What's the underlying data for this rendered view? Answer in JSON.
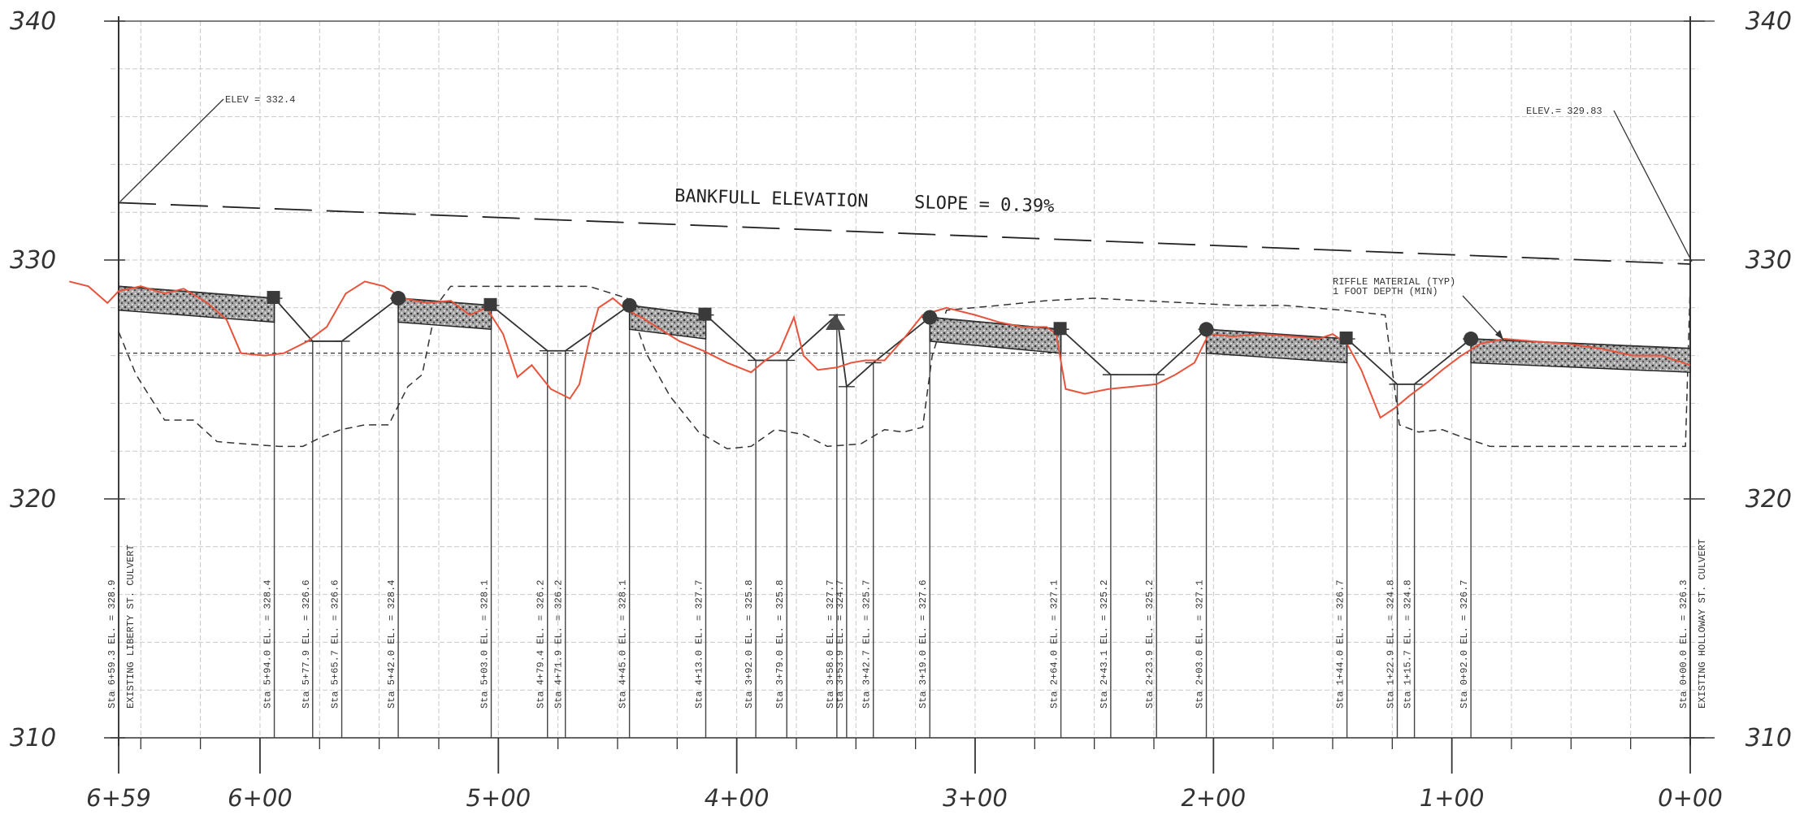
{
  "elevation_ticks": [
    {
      "label": "340",
      "value": 340
    },
    {
      "label": "330",
      "value": 330
    },
    {
      "label": "320",
      "value": 320
    },
    {
      "label": "310",
      "value": 310
    }
  ],
  "station_ticks": [
    {
      "label": "6+59",
      "sta": 659.3
    },
    {
      "label": "6+00",
      "sta": 600
    },
    {
      "label": "5+00",
      "sta": 500
    },
    {
      "label": "4+00",
      "sta": 400
    },
    {
      "label": "3+00",
      "sta": 300
    },
    {
      "label": "2+00",
      "sta": 200
    },
    {
      "label": "1+00",
      "sta": 100
    },
    {
      "label": "0+00",
      "sta": 0
    }
  ],
  "notes": {
    "elev_left": "ELEV = 332.4",
    "elev_right": "ELEV.= 329.83",
    "bankfull": "BANKFULL ELEVATION",
    "slope": "SLOPE = 0.39%",
    "riffle_line1": "RIFFLE MATERIAL (TYP)",
    "riffle_line2": "1 FOOT DEPTH (MIN)"
  },
  "bankfull_line": {
    "start": {
      "sta": 659.3,
      "elev": 332.4
    },
    "end": {
      "sta": 0,
      "elev": 329.83
    }
  },
  "proposed_profile": [
    [
      659.3,
      328.9
    ],
    [
      594,
      328.4
    ],
    [
      577.9,
      326.6
    ],
    [
      565.7,
      326.6
    ],
    [
      542,
      328.4
    ],
    [
      503,
      328.1
    ],
    [
      479.4,
      326.2
    ],
    [
      471.9,
      326.2
    ],
    [
      445,
      328.1
    ],
    [
      413,
      327.7
    ],
    [
      392,
      325.8
    ],
    [
      379,
      325.8
    ],
    [
      358,
      327.7
    ],
    [
      353.9,
      324.7
    ],
    [
      342.7,
      325.7
    ],
    [
      319,
      327.6
    ],
    [
      264,
      327.1
    ],
    [
      243.1,
      325.2
    ],
    [
      223.9,
      325.2
    ],
    [
      203,
      327.1
    ],
    [
      144,
      326.7
    ],
    [
      122.9,
      324.8
    ],
    [
      115.7,
      324.8
    ],
    [
      92,
      326.7
    ],
    [
      0,
      326.3
    ]
  ],
  "riffles": [
    {
      "from": 659.3,
      "to": 594
    },
    {
      "from": 542,
      "to": 503
    },
    {
      "from": 445,
      "to": 413
    },
    {
      "from": 319,
      "to": 264
    },
    {
      "from": 203,
      "to": 144
    },
    {
      "from": 92,
      "to": 0
    }
  ],
  "riffle_markers": [
    {
      "sta": 542,
      "type": "circle"
    },
    {
      "sta": 503,
      "type": "square"
    },
    {
      "sta": 445,
      "type": "circle"
    },
    {
      "sta": 413,
      "type": "square"
    },
    {
      "sta": 319,
      "type": "circle"
    },
    {
      "sta": 264,
      "type": "square"
    },
    {
      "sta": 203,
      "type": "circle"
    },
    {
      "sta": 144,
      "type": "square"
    },
    {
      "sta": 92,
      "type": "circle"
    },
    {
      "sta": 594,
      "type": "square"
    }
  ],
  "existing_ground": [
    [
      680,
      329.1
    ],
    [
      672,
      328.9
    ],
    [
      664,
      328.2
    ],
    [
      659.3,
      328.7
    ],
    [
      650,
      328.9
    ],
    [
      640,
      328.6
    ],
    [
      632,
      328.8
    ],
    [
      622,
      328.2
    ],
    [
      614,
      327.5
    ],
    [
      608,
      326.1
    ],
    [
      598,
      326.0
    ],
    [
      590,
      326.1
    ],
    [
      580,
      326.6
    ],
    [
      572,
      327.2
    ],
    [
      564,
      328.6
    ],
    [
      556,
      329.1
    ],
    [
      548,
      328.9
    ],
    [
      540,
      328.4
    ],
    [
      530,
      328.2
    ],
    [
      520,
      328.3
    ],
    [
      512,
      327.7
    ],
    [
      505,
      328.0
    ],
    [
      498,
      326.9
    ],
    [
      492,
      325.1
    ],
    [
      486,
      325.6
    ],
    [
      478,
      324.6
    ],
    [
      470,
      324.2
    ],
    [
      466,
      324.8
    ],
    [
      462,
      326.6
    ],
    [
      458,
      328.0
    ],
    [
      452,
      328.4
    ],
    [
      446,
      327.9
    ],
    [
      440,
      327.6
    ],
    [
      432,
      327.1
    ],
    [
      424,
      326.6
    ],
    [
      414,
      326.2
    ],
    [
      404,
      325.7
    ],
    [
      394,
      325.3
    ],
    [
      388,
      325.8
    ],
    [
      382,
      326.2
    ],
    [
      376,
      327.6
    ],
    [
      372,
      326.0
    ],
    [
      366,
      325.4
    ],
    [
      358,
      325.5
    ],
    [
      352,
      325.7
    ],
    [
      346,
      325.8
    ],
    [
      338,
      325.8
    ],
    [
      330,
      326.7
    ],
    [
      322,
      327.7
    ],
    [
      312,
      328.0
    ],
    [
      300,
      327.7
    ],
    [
      290,
      327.4
    ],
    [
      280,
      327.2
    ],
    [
      270,
      327.2
    ],
    [
      266,
      326.9
    ],
    [
      262,
      324.6
    ],
    [
      254,
      324.4
    ],
    [
      244,
      324.6
    ],
    [
      234,
      324.7
    ],
    [
      224,
      324.8
    ],
    [
      216,
      325.2
    ],
    [
      208,
      325.7
    ],
    [
      202,
      326.9
    ],
    [
      192,
      326.8
    ],
    [
      180,
      326.9
    ],
    [
      166,
      326.8
    ],
    [
      156,
      326.7
    ],
    [
      150,
      326.9
    ],
    [
      144,
      326.5
    ],
    [
      138,
      325.4
    ],
    [
      130,
      323.4
    ],
    [
      124,
      323.8
    ],
    [
      118,
      324.3
    ],
    [
      110,
      324.9
    ],
    [
      104,
      325.4
    ],
    [
      96,
      326.0
    ],
    [
      88,
      326.5
    ],
    [
      78,
      326.7
    ],
    [
      66,
      326.6
    ],
    [
      52,
      326.5
    ],
    [
      38,
      326.3
    ],
    [
      24,
      326.0
    ],
    [
      12,
      326.0
    ],
    [
      0,
      325.6
    ]
  ],
  "existing_thalweg": [
    [
      659.3,
      327.0
    ],
    [
      652,
      325.2
    ],
    [
      640,
      323.3
    ],
    [
      628,
      323.3
    ],
    [
      618,
      322.4
    ],
    [
      606,
      322.3
    ],
    [
      592,
      322.2
    ],
    [
      582,
      322.2
    ],
    [
      574,
      322.6
    ],
    [
      566,
      322.9
    ],
    [
      556,
      323.1
    ],
    [
      546,
      323.1
    ],
    [
      538,
      324.7
    ],
    [
      532,
      325.2
    ],
    [
      526,
      328.1
    ],
    [
      520,
      328.9
    ],
    [
      500,
      328.9
    ],
    [
      482,
      328.9
    ],
    [
      462,
      328.9
    ],
    [
      446,
      328.4
    ],
    [
      438,
      326.1
    ],
    [
      428,
      324.3
    ],
    [
      416,
      322.8
    ],
    [
      404,
      322.1
    ],
    [
      394,
      322.2
    ],
    [
      384,
      322.9
    ],
    [
      372,
      322.7
    ],
    [
      362,
      322.2
    ],
    [
      348,
      322.3
    ],
    [
      338,
      322.9
    ],
    [
      330,
      322.8
    ],
    [
      322,
      323.0
    ],
    [
      318,
      326.0
    ],
    [
      312,
      327.9
    ],
    [
      290,
      328.1
    ],
    [
      270,
      328.3
    ],
    [
      250,
      328.4
    ],
    [
      230,
      328.3
    ],
    [
      210,
      328.2
    ],
    [
      190,
      328.1
    ],
    [
      170,
      328.1
    ],
    [
      146,
      327.9
    ],
    [
      128,
      327.7
    ],
    [
      122,
      323.1
    ],
    [
      114,
      322.8
    ],
    [
      104,
      322.9
    ],
    [
      96,
      322.6
    ],
    [
      84,
      322.2
    ],
    [
      60,
      322.2
    ],
    [
      30,
      322.2
    ],
    [
      2,
      322.2
    ],
    [
      0,
      329.0
    ]
  ],
  "water_surface_elev": 326.1,
  "structure_labels": [
    {
      "sta": 659.3,
      "text": "Sta 6+59.3 EL. = 328.9"
    },
    {
      "sta": 594,
      "text": "Sta 5+94.0 EL. = 328.4"
    },
    {
      "sta": 577.9,
      "text": "Sta 5+77.9 EL. = 326.6"
    },
    {
      "sta": 565.7,
      "text": "Sta 5+65.7 EL. = 326.6"
    },
    {
      "sta": 542,
      "text": "Sta 5+42.0 EL. = 328.4"
    },
    {
      "sta": 503,
      "text": "Sta 5+03.0 EL. = 328.1"
    },
    {
      "sta": 479.4,
      "text": "Sta 4+79.4 EL. = 326.2"
    },
    {
      "sta": 471.9,
      "text": "Sta 4+71.9 EL. = 326.2"
    },
    {
      "sta": 445,
      "text": "Sta 4+45.0 EL. = 328.1"
    },
    {
      "sta": 413,
      "text": "Sta 4+13.0 EL. = 327.7"
    },
    {
      "sta": 392,
      "text": "Sta 3+92.0 EL. = 325.8"
    },
    {
      "sta": 379,
      "text": "Sta 3+79.0 EL. = 325.8"
    },
    {
      "sta": 358,
      "text": "Sta 3+58.0 EL. = 327.7"
    },
    {
      "sta": 353.9,
      "text": "Sta 3+53.9 EL. = 324.7"
    },
    {
      "sta": 342.7,
      "text": "Sta 3+42.7 EL. = 325.7"
    },
    {
      "sta": 319,
      "text": "Sta 3+19.0 EL. = 327.6"
    },
    {
      "sta": 264,
      "text": "Sta 2+64.0 EL. = 327.1"
    },
    {
      "sta": 243.1,
      "text": "Sta 2+43.1 EL. = 325.2"
    },
    {
      "sta": 223.9,
      "text": "Sta 2+23.9 EL. = 325.2"
    },
    {
      "sta": 203,
      "text": "Sta 2+03.0 EL. = 327.1"
    },
    {
      "sta": 144,
      "text": "Sta 1+44.0 EL. = 326.7"
    },
    {
      "sta": 122.9,
      "text": "Sta 1+22.9 EL. = 324.8"
    },
    {
      "sta": 115.7,
      "text": "Sta 1+15.7 EL. = 324.8"
    },
    {
      "sta": 92,
      "text": "Sta 0+92.0 EL. = 326.7"
    },
    {
      "sta": 0,
      "text": "Sta 0+00.0 EL. = 326.3"
    }
  ],
  "culverts": {
    "left": "EXISTING LIBERTY ST. CULVERT",
    "right": "EXISTING HOLLOWAY ST. CULVERT"
  },
  "colors": {
    "grid": "#c9c9c9",
    "ink": "#333333",
    "existing_ground": "#e8533b",
    "riffle_fill": "#8c8c8c"
  }
}
